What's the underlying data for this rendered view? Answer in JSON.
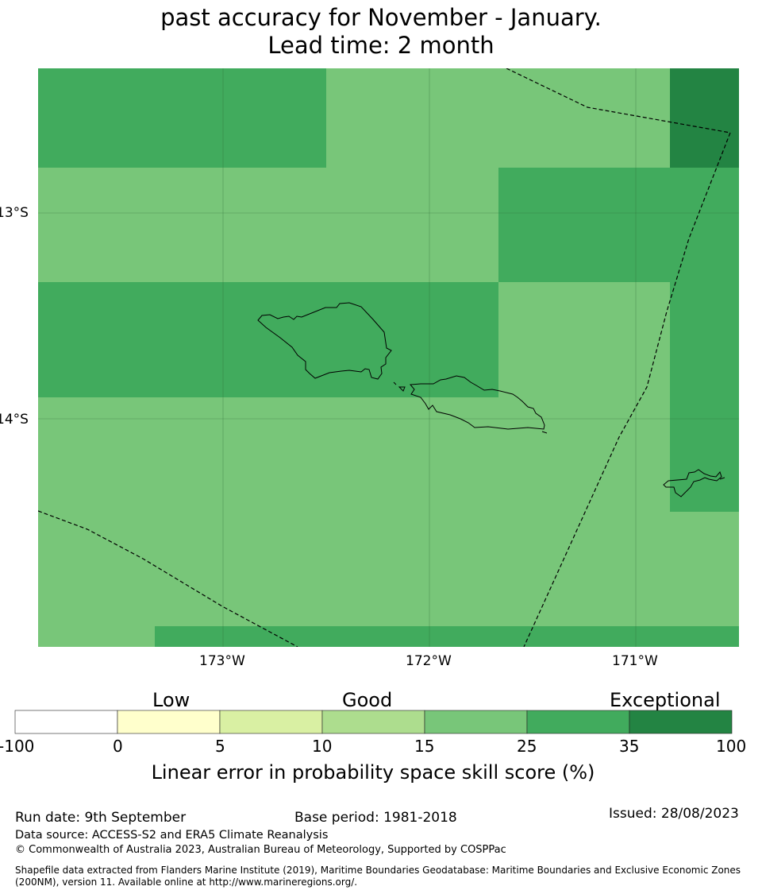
{
  "title": {
    "line1": "past accuracy for November - January.",
    "line2": "Lead time: 2 month"
  },
  "map": {
    "lat_labels": [
      "13°S",
      "14°S"
    ],
    "lon_labels": [
      "173°W",
      "172°W",
      "171°W"
    ],
    "colors": {
      "good_light": "#78c679",
      "good_medium": "#41ab5d",
      "exceptional": "#238443",
      "gridline": "#2d6b36",
      "coast": "#000000",
      "boundary": "#000000"
    }
  },
  "colorbar": {
    "categories": [
      "Low",
      "Good",
      "Exceptional"
    ],
    "ticks": [
      "-100",
      "0",
      "5",
      "10",
      "15",
      "25",
      "35",
      "100"
    ],
    "colors": [
      "#ffffff",
      "#ffffcc",
      "#d9f0a3",
      "#addd8e",
      "#78c679",
      "#41ab5d",
      "#238443"
    ],
    "title": "Linear error in probability space skill score (%)"
  },
  "footer": {
    "run_date": "Run date: 9th September",
    "base_period": "Base period: 1981-2018",
    "issued": "Issued: 28/08/2023",
    "data_source": "Data source: ACCESS-S2 and ERA5 Climate Reanalysis",
    "copyright": "© Commonwealth of Australia 2023, Australian Bureau of Meteorology, Supported by COSPPac",
    "shapefile_line1": "Shapefile data extracted from Flanders Marine Institute (2019), Maritime Boundaries Geodatabase: Maritime Boundaries and Exclusive Economic Zones",
    "shapefile_line2": "(200NM), version 11. Available online at http://www.marineregions.org/."
  }
}
